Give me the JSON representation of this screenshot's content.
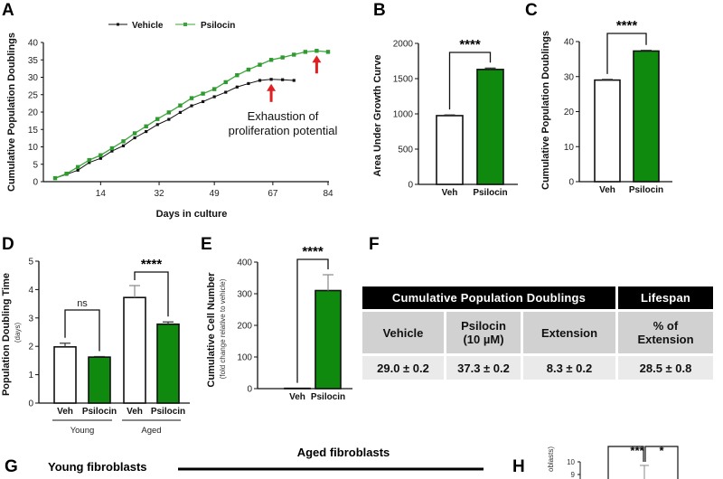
{
  "panels": {
    "A": "A",
    "B": "B",
    "C": "C",
    "D": "D",
    "E": "E",
    "F": "F",
    "G": "G",
    "H": "H"
  },
  "chart_data": [
    {
      "id": "A",
      "type": "line",
      "title": "",
      "xlabel": "Days in culture",
      "ylabel": "Cumulative Population Doublings",
      "xlim": [
        0,
        84
      ],
      "ylim": [
        0,
        40
      ],
      "xticks": [
        14,
        32,
        49,
        67,
        84
      ],
      "yticks": [
        0,
        5,
        10,
        15,
        20,
        25,
        30,
        35,
        40
      ],
      "legend": "top",
      "series": [
        {
          "name": "Vehicle",
          "color": "#111111",
          "x": [
            0,
            3.5,
            7,
            10.5,
            14,
            17.5,
            21,
            24.5,
            28,
            31.5,
            35,
            38.5,
            42,
            45.5,
            49,
            52.5,
            56,
            59.5,
            63,
            66.5,
            70,
            73.5
          ],
          "y": [
            1.0,
            2.1,
            3.3,
            5.5,
            6.7,
            8.8,
            10.3,
            12.6,
            14.4,
            16.4,
            17.9,
            19.9,
            21.8,
            23.0,
            24.4,
            25.7,
            27.2,
            28.2,
            29.1,
            29.4,
            29.3,
            29.1
          ]
        },
        {
          "name": "Psilocin",
          "color": "#3aa63a",
          "x": [
            0,
            3.5,
            7,
            10.5,
            14,
            17.5,
            21,
            24.5,
            28,
            31.5,
            35,
            38.5,
            42,
            45.5,
            49,
            52.5,
            56,
            59.5,
            63,
            66.5,
            70,
            73.5,
            77,
            80.5,
            84
          ],
          "y": [
            1.0,
            2.3,
            4.2,
            6.2,
            7.6,
            9.6,
            11.6,
            13.9,
            15.9,
            18.0,
            19.9,
            21.9,
            24.0,
            25.3,
            26.6,
            28.6,
            30.6,
            32.2,
            33.6,
            35.0,
            35.7,
            36.5,
            37.3,
            37.6,
            37.3
          ]
        }
      ],
      "annotations": [
        {
          "text_lines": [
            "Exhaustion of",
            "proliferation potential"
          ],
          "arrows_at": [
            {
              "series": "Vehicle",
              "x": 66.5
            },
            {
              "series": "Psilocin",
              "x": 80.5
            }
          ],
          "arrow_color": "#e02020"
        }
      ]
    },
    {
      "id": "B",
      "type": "bar",
      "ylabel": "Area Under Growth Curve",
      "categories": [
        "Veh",
        "Psilocin"
      ],
      "values": [
        975,
        1630
      ],
      "errors": [
        10,
        20
      ],
      "colors": [
        "#ffffff",
        "#0f8a0f"
      ],
      "ylim": [
        0,
        2000
      ],
      "yticks": [
        0,
        500,
        1000,
        1500,
        2000
      ],
      "significance": [
        {
          "between": [
            0,
            1
          ],
          "label": "****"
        }
      ]
    },
    {
      "id": "C",
      "type": "bar",
      "ylabel": "Cumulative Population Doublings",
      "categories": [
        "Veh",
        "Psilocin"
      ],
      "values": [
        29.0,
        37.3
      ],
      "errors": [
        0.2,
        0.2
      ],
      "colors": [
        "#ffffff",
        "#0f8a0f"
      ],
      "ylim": [
        0,
        40
      ],
      "yticks": [
        0,
        10,
        20,
        30,
        40
      ],
      "significance": [
        {
          "between": [
            0,
            1
          ],
          "label": "****"
        }
      ]
    },
    {
      "id": "D",
      "type": "bar",
      "ylabel": "Population Doubling Time",
      "ylabel_sub": "(days)",
      "categories": [
        "Veh",
        "Psilocin",
        "Veh",
        "Psilocin"
      ],
      "groups": [
        {
          "label": "Young",
          "members": [
            0,
            1
          ]
        },
        {
          "label": "Aged",
          "members": [
            2,
            3
          ]
        }
      ],
      "values": [
        1.98,
        1.62,
        3.72,
        2.78
      ],
      "errors": [
        0.13,
        0.02,
        0.42,
        0.08
      ],
      "colors": [
        "#ffffff",
        "#0f8a0f",
        "#ffffff",
        "#0f8a0f"
      ],
      "ylim": [
        0,
        5
      ],
      "yticks": [
        0,
        1,
        2,
        3,
        4,
        5
      ],
      "significance": [
        {
          "between": [
            0,
            1
          ],
          "label": "ns"
        },
        {
          "between": [
            2,
            3
          ],
          "label": "****"
        }
      ]
    },
    {
      "id": "E",
      "type": "bar",
      "ylabel": "Cumulative Cell Number",
      "ylabel_sub": "(fold change relative to vehicle)",
      "categories": [
        "Veh",
        "Psilocin"
      ],
      "values": [
        1,
        310
      ],
      "errors": [
        0,
        50
      ],
      "colors": [
        "#ffffff",
        "#0f8a0f"
      ],
      "ylim": [
        0,
        400
      ],
      "yticks": [
        0,
        100,
        200,
        300,
        400
      ],
      "significance": [
        {
          "between": [
            0,
            1
          ],
          "label": "****"
        }
      ]
    },
    {
      "id": "F",
      "type": "table",
      "header": [
        {
          "label": "Cumulative Population Doublings",
          "span": 3
        },
        {
          "label": "Lifespan",
          "span": 1
        }
      ],
      "columns": [
        [
          "Vehicle"
        ],
        [
          "Psilocin",
          "(10 µM)"
        ],
        [
          "Extension"
        ],
        [
          "% of",
          "Extension"
        ]
      ],
      "values": [
        "29.0 ± 0.2",
        "37.3 ± 0.2",
        "8.3 ± 0.2",
        "28.5 ± 0.8"
      ]
    }
  ],
  "panel_g": {
    "young_label": "Young fibroblasts",
    "aged_label": "Aged fibroblasts"
  },
  "panel_h": {
    "ylabel_partial": "oblasts)",
    "yticks_visible": [
      "10",
      "9"
    ],
    "significance": [
      "***",
      "*"
    ]
  }
}
